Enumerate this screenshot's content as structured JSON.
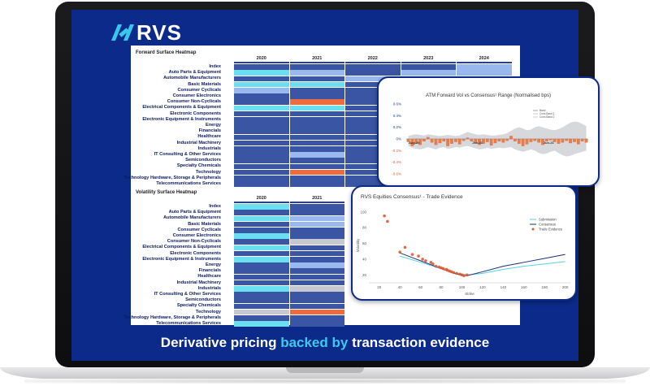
{
  "brand": {
    "logo_text": "RVS"
  },
  "tagline": {
    "part1": "Derivative pricing ",
    "highlight": "backed by",
    "part2": " transaction evidence"
  },
  "colors": {
    "screen_bg": "#0c2a8a",
    "accent": "#3cc9ec",
    "dark_cell": "#3a55a4",
    "mid_cell": "#98b8ee",
    "light_cell": "#69dff0",
    "hot_cell": "#f06a3b",
    "grey_cell": "#c8c8d0"
  },
  "forward_heatmap": {
    "title": "Forward Surface Heatmap",
    "years": [
      "2020",
      "2021",
      "2022",
      "2023",
      "2024"
    ],
    "rows": [
      {
        "label": "Index",
        "cells": [
          "D",
          "D",
          "D",
          "D",
          "M"
        ]
      },
      {
        "label": "Auto Parts & Equipment",
        "cells": [
          "L",
          "M",
          "D",
          "M",
          "M"
        ]
      },
      {
        "label": "Automobile Manufacturers",
        "cells": [
          "D",
          "D",
          "M",
          "D",
          "D"
        ]
      },
      {
        "label": "Basic Materials",
        "cells": [
          "L",
          "L",
          "D",
          "D",
          "D"
        ]
      },
      {
        "label": "Consumer Cyclicals",
        "cells": [
          "M",
          "D",
          "D",
          "D",
          "D"
        ]
      },
      {
        "label": "Consumer Electronics",
        "cells": [
          "D",
          "D",
          "D",
          "D",
          "D"
        ]
      },
      {
        "label": "Consumer Non-Cyclicals",
        "cells": [
          "D",
          "H",
          "D",
          "D",
          "D"
        ]
      },
      {
        "label": "Electrical Components & Equipment",
        "cells": [
          "L",
          "L",
          "D",
          "D",
          "D"
        ]
      },
      {
        "label": "Electronic Components",
        "cells": [
          "D",
          "D",
          "D",
          "D",
          "D"
        ]
      },
      {
        "label": "Electronic Equipment & Instruments",
        "cells": [
          "D",
          "D",
          "D",
          "D",
          "D"
        ]
      },
      {
        "label": "Energy",
        "cells": [
          "D",
          "D",
          "D",
          "D",
          "D"
        ]
      },
      {
        "label": "Financials",
        "cells": [
          "D",
          "D",
          "D",
          "D",
          "D"
        ]
      },
      {
        "label": "Healthcare",
        "cells": [
          "D",
          "D",
          "D",
          "D",
          "D"
        ]
      },
      {
        "label": "Industrial Machinery",
        "cells": [
          "D",
          "D",
          "D",
          "D",
          "D"
        ]
      },
      {
        "label": "Industrials",
        "cells": [
          "D",
          "D",
          "D",
          "D",
          "D"
        ]
      },
      {
        "label": "IT Consulting & Other Services",
        "cells": [
          "D",
          "M",
          "D",
          "D",
          "D"
        ]
      },
      {
        "label": "Semiconductors",
        "cells": [
          "D",
          "D",
          "D",
          "D",
          "D"
        ]
      },
      {
        "label": "Specialty Chemicals",
        "cells": [
          "D",
          "D",
          "D",
          "D",
          "D"
        ]
      },
      {
        "label": "Technology",
        "cells": [
          "D",
          "H",
          "D",
          "D",
          "D"
        ]
      },
      {
        "label": "Technology Hardware, Storage & Peripherals",
        "cells": [
          "D",
          "D",
          "D",
          "D",
          "D"
        ]
      },
      {
        "label": "Telecommunications Services",
        "cells": [
          "D",
          "D",
          "D",
          "D",
          "D"
        ]
      }
    ]
  },
  "volatility_heatmap": {
    "title": "Volatility Surface Heatmap",
    "years": [
      "2020",
      "2021"
    ],
    "rows": [
      {
        "label": "Index",
        "cells": [
          "L",
          "D"
        ]
      },
      {
        "label": "Auto Parts & Equipment",
        "cells": [
          "D",
          "D"
        ]
      },
      {
        "label": "Automobile Manufacturers",
        "cells": [
          "L",
          "M"
        ]
      },
      {
        "label": "Basic Materials",
        "cells": [
          "D",
          "M"
        ]
      },
      {
        "label": "Consumer Cyclicals",
        "cells": [
          "D",
          "D"
        ]
      },
      {
        "label": "Consumer Electronics",
        "cells": [
          "L",
          "D"
        ]
      },
      {
        "label": "Consumer Non-Cyclicals",
        "cells": [
          "D",
          "G"
        ]
      },
      {
        "label": "Electrical Components & Equipment",
        "cells": [
          "L",
          "D"
        ]
      },
      {
        "label": "Electronic Components",
        "cells": [
          "D",
          "D"
        ]
      },
      {
        "label": "Electronic Equipment & Instruments",
        "cells": [
          "L",
          "D"
        ]
      },
      {
        "label": "Energy",
        "cells": [
          "D",
          "M"
        ]
      },
      {
        "label": "Financials",
        "cells": [
          "D",
          "D"
        ]
      },
      {
        "label": "Healthcare",
        "cells": [
          "D",
          "D"
        ]
      },
      {
        "label": "Industrial Machinery",
        "cells": [
          "D",
          "D"
        ]
      },
      {
        "label": "Industrials",
        "cells": [
          "L",
          "G"
        ]
      },
      {
        "label": "IT Consulting & Other Services",
        "cells": [
          "D",
          "D"
        ]
      },
      {
        "label": "Semiconductors",
        "cells": [
          "D",
          "D"
        ]
      },
      {
        "label": "Specialty Chemicals",
        "cells": [
          "D",
          "D"
        ]
      },
      {
        "label": "Technology",
        "cells": [
          "G",
          "H"
        ]
      },
      {
        "label": "Technology Hardware, Storage & Peripherals",
        "cells": [
          "D",
          "D"
        ]
      },
      {
        "label": "Telecommunications Services",
        "cells": [
          "L",
          "D"
        ]
      }
    ]
  },
  "chart_data": [
    {
      "type": "bar",
      "title": "ATM Forward Vol vs Consensus¹ Range (Normalised bps)",
      "y_ticks": [
        "0.6%",
        "0.4%",
        "0.2%",
        "0%",
        "-0.2%",
        "-0.4%",
        "-0.6%"
      ],
      "ylim": [
        -0.6,
        0.6
      ],
      "x_labels": [
        "Aug-20",
        "Jan-21",
        "Jun-21"
      ],
      "legend": [
        "Band",
        "Cons Band 1",
        "Cons Band 2"
      ],
      "values": [
        -0.05,
        -0.12,
        -0.08,
        -0.1,
        -0.04,
        0.03,
        -0.06,
        -0.1,
        -0.07,
        -0.04,
        -0.12,
        -0.08,
        -0.05,
        -0.09,
        -0.03,
        0.02,
        -0.04,
        -0.06,
        -0.1,
        -0.08,
        -0.05,
        -0.11,
        -0.07,
        -0.04,
        -0.06,
        -0.03,
        0.05,
        -0.04,
        -0.08,
        -0.12,
        -0.09,
        -0.05,
        -0.03,
        -0.06,
        -0.1,
        -0.04,
        -0.02,
        -0.05,
        -0.08,
        -0.06,
        -0.03,
        -0.07,
        -0.05,
        -0.09,
        -0.04,
        -0.06
      ],
      "band_upper": [
        0.05,
        0.07,
        0.08,
        0.07,
        0.06,
        0.08,
        0.07,
        0.06,
        0.05,
        0.06,
        0.07,
        0.06,
        0.05,
        0.06,
        0.09,
        0.12,
        0.1,
        0.08,
        0.07,
        0.08,
        0.07,
        0.06,
        0.06,
        0.07,
        0.08,
        0.1,
        0.14,
        0.18,
        0.2,
        0.18,
        0.15,
        0.16,
        0.2,
        0.22,
        0.2,
        0.18,
        0.16,
        0.15,
        0.17,
        0.2,
        0.24,
        0.28,
        0.3,
        0.29,
        0.26,
        0.22
      ],
      "band_lower": [
        -0.12,
        -0.15,
        -0.17,
        -0.18,
        -0.16,
        -0.14,
        -0.16,
        -0.18,
        -0.15,
        -0.14,
        -0.17,
        -0.16,
        -0.14,
        -0.15,
        -0.13,
        -0.12,
        -0.14,
        -0.16,
        -0.18,
        -0.17,
        -0.15,
        -0.17,
        -0.16,
        -0.15,
        -0.16,
        -0.15,
        -0.14,
        -0.18,
        -0.2,
        -0.22,
        -0.2,
        -0.18,
        -0.2,
        -0.24,
        -0.26,
        -0.25,
        -0.22,
        -0.2,
        -0.24,
        -0.28,
        -0.3,
        -0.29,
        -0.26,
        -0.24,
        -0.22,
        -0.2
      ]
    },
    {
      "type": "scatter",
      "title": "RVS Equities Consensus¹ - Trade Evidence",
      "xlabel": "Strike",
      "ylabel": "Volatility",
      "x_ticks": [
        20,
        40,
        60,
        80,
        100,
        120,
        140,
        160,
        180,
        200
      ],
      "y_ticks": [
        20,
        40,
        60,
        80,
        100
      ],
      "xlim": [
        10,
        205
      ],
      "ylim": [
        10,
        105
      ],
      "series": [
        {
          "name": "Submission",
          "kind": "line",
          "x": [
            40,
            60,
            80,
            95,
            105,
            120,
            140,
            160,
            180,
            200
          ],
          "y": [
            44,
            36,
            28,
            22,
            20,
            22,
            27,
            31,
            34,
            37
          ]
        },
        {
          "name": "Consensus",
          "kind": "line",
          "x": [
            40,
            60,
            80,
            95,
            105,
            120,
            140,
            160,
            180,
            200
          ],
          "y": [
            48,
            38,
            28,
            21,
            19,
            24,
            31,
            36,
            41,
            46
          ]
        },
        {
          "name": "Trade Evidence",
          "kind": "points",
          "x": [
            25,
            28,
            40,
            45,
            52,
            58,
            62,
            65,
            70,
            72,
            75,
            78,
            80,
            82,
            85,
            86,
            88,
            90,
            92,
            95,
            98,
            100,
            102,
            105
          ],
          "y": [
            95,
            88,
            49,
            55,
            46,
            44,
            40,
            38,
            36,
            34,
            31,
            30,
            29,
            28,
            27,
            26,
            25,
            24,
            23,
            22,
            21,
            20,
            19,
            20
          ]
        }
      ]
    }
  ]
}
